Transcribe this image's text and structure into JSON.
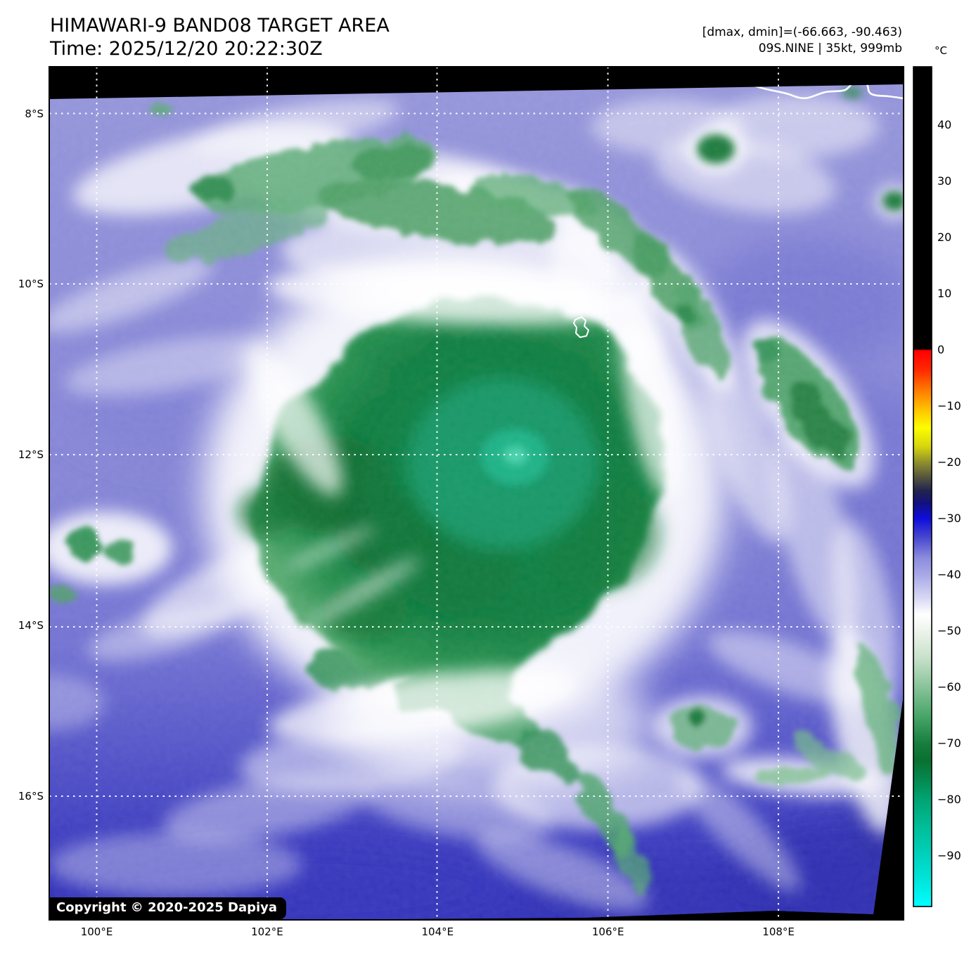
{
  "header": {
    "title": "HIMAWARI-9 BAND08 TARGET AREA",
    "time_line": "Time: 2025/12/20 20:22:30Z",
    "range_line": "[dmax, dmin]=(-66.663, -90.463)",
    "storm_line": "09S.NINE | 35kt, 999mb"
  },
  "map": {
    "copyright": "Copyright © 2020-2025 Dapiya",
    "lat_ticks": [
      {
        "label": "8°S",
        "value": 8
      },
      {
        "label": "10°S",
        "value": 10
      },
      {
        "label": "12°S",
        "value": 12
      },
      {
        "label": "14°S",
        "value": 14
      },
      {
        "label": "16°S",
        "value": 16
      }
    ],
    "lon_ticks": [
      {
        "label": "100°E",
        "value": 100
      },
      {
        "label": "102°E",
        "value": 102
      },
      {
        "label": "104°E",
        "value": 104
      },
      {
        "label": "106°E",
        "value": 106
      },
      {
        "label": "108°E",
        "value": 108
      }
    ]
  },
  "colorbar": {
    "unit": "°C",
    "ticks": [
      {
        "label": "40",
        "value": 40
      },
      {
        "label": "30",
        "value": 30
      },
      {
        "label": "20",
        "value": 20
      },
      {
        "label": "10",
        "value": 10
      },
      {
        "label": "0",
        "value": 0
      },
      {
        "label": "−10",
        "value": -10
      },
      {
        "label": "−20",
        "value": -20
      },
      {
        "label": "−30",
        "value": -30
      },
      {
        "label": "−40",
        "value": -40
      },
      {
        "label": "−50",
        "value": -50
      },
      {
        "label": "−60",
        "value": -60
      },
      {
        "label": "−70",
        "value": -70
      },
      {
        "label": "−80",
        "value": -80
      },
      {
        "label": "−90",
        "value": -90
      }
    ]
  }
}
